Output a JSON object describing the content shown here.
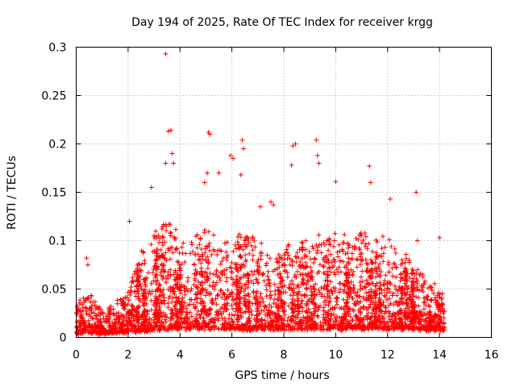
{
  "chart_data": {
    "type": "scatter",
    "title": "Day 194 of 2025, Rate Of TEC Index for receiver krgg",
    "xlabel": "GPS time / hours",
    "ylabel": "ROTI / TECUs",
    "xlim": [
      0,
      16
    ],
    "ylim": [
      0,
      0.3
    ],
    "x_ticks": [
      0,
      2,
      4,
      6,
      8,
      10,
      12,
      14,
      16
    ],
    "y_ticks": [
      0,
      0.05,
      0.1,
      0.15,
      0.2,
      0.25,
      0.3
    ],
    "x_tick_labels": [
      "0",
      "2",
      "4",
      "6",
      "8",
      "10",
      "12",
      "14",
      "16"
    ],
    "y_tick_labels": [
      "0",
      "0.05",
      "0.1",
      "0.15",
      "0.2",
      "0.25",
      "0.3"
    ],
    "grid": true,
    "marker": "+",
    "color": "#ff0000",
    "data_extent_hours": [
      0,
      14.2
    ],
    "envelope": [
      {
        "x": 0.0,
        "base": 0.005,
        "peak": 0.035
      },
      {
        "x": 0.5,
        "base": 0.005,
        "peak": 0.045
      },
      {
        "x": 1.0,
        "base": 0.005,
        "peak": 0.03
      },
      {
        "x": 1.5,
        "base": 0.005,
        "peak": 0.035
      },
      {
        "x": 2.0,
        "base": 0.006,
        "peak": 0.05
      },
      {
        "x": 2.5,
        "base": 0.007,
        "peak": 0.09
      },
      {
        "x": 3.0,
        "base": 0.008,
        "peak": 0.11
      },
      {
        "x": 3.5,
        "base": 0.009,
        "peak": 0.12
      },
      {
        "x": 4.0,
        "base": 0.009,
        "peak": 0.11
      },
      {
        "x": 4.5,
        "base": 0.009,
        "peak": 0.1
      },
      {
        "x": 5.0,
        "base": 0.009,
        "peak": 0.12
      },
      {
        "x": 5.5,
        "base": 0.009,
        "peak": 0.1
      },
      {
        "x": 6.0,
        "base": 0.009,
        "peak": 0.1
      },
      {
        "x": 6.5,
        "base": 0.009,
        "peak": 0.11
      },
      {
        "x": 7.0,
        "base": 0.009,
        "peak": 0.1
      },
      {
        "x": 7.5,
        "base": 0.009,
        "peak": 0.09
      },
      {
        "x": 8.0,
        "base": 0.009,
        "peak": 0.09
      },
      {
        "x": 8.5,
        "base": 0.009,
        "peak": 0.11
      },
      {
        "x": 9.0,
        "base": 0.009,
        "peak": 0.1
      },
      {
        "x": 9.5,
        "base": 0.009,
        "peak": 0.11
      },
      {
        "x": 10.0,
        "base": 0.009,
        "peak": 0.1
      },
      {
        "x": 10.5,
        "base": 0.009,
        "peak": 0.1
      },
      {
        "x": 11.0,
        "base": 0.009,
        "peak": 0.11
      },
      {
        "x": 11.5,
        "base": 0.009,
        "peak": 0.1
      },
      {
        "x": 12.0,
        "base": 0.009,
        "peak": 0.11
      },
      {
        "x": 12.5,
        "base": 0.009,
        "peak": 0.08
      },
      {
        "x": 13.0,
        "base": 0.009,
        "peak": 0.08
      },
      {
        "x": 13.5,
        "base": 0.008,
        "peak": 0.06
      },
      {
        "x": 14.0,
        "base": 0.008,
        "peak": 0.05
      },
      {
        "x": 14.2,
        "base": 0.008,
        "peak": 0.045
      }
    ],
    "notable_points": [
      {
        "x": 3.45,
        "y": 0.293
      },
      {
        "x": 3.55,
        "y": 0.213
      },
      {
        "x": 3.65,
        "y": 0.214
      },
      {
        "x": 3.7,
        "y": 0.19
      },
      {
        "x": 3.75,
        "y": 0.18
      },
      {
        "x": 3.45,
        "y": 0.18
      },
      {
        "x": 2.9,
        "y": 0.155
      },
      {
        "x": 5.1,
        "y": 0.212
      },
      {
        "x": 5.15,
        "y": 0.21
      },
      {
        "x": 5.05,
        "y": 0.17
      },
      {
        "x": 4.95,
        "y": 0.16
      },
      {
        "x": 5.5,
        "y": 0.17
      },
      {
        "x": 5.95,
        "y": 0.188
      },
      {
        "x": 6.05,
        "y": 0.185
      },
      {
        "x": 6.4,
        "y": 0.204
      },
      {
        "x": 6.45,
        "y": 0.195
      },
      {
        "x": 6.35,
        "y": 0.168
      },
      {
        "x": 8.35,
        "y": 0.198
      },
      {
        "x": 8.45,
        "y": 0.2
      },
      {
        "x": 8.3,
        "y": 0.178
      },
      {
        "x": 9.25,
        "y": 0.204
      },
      {
        "x": 9.3,
        "y": 0.188
      },
      {
        "x": 9.35,
        "y": 0.18
      },
      {
        "x": 10.0,
        "y": 0.161
      },
      {
        "x": 11.3,
        "y": 0.177
      },
      {
        "x": 11.35,
        "y": 0.16
      },
      {
        "x": 12.1,
        "y": 0.143
      },
      {
        "x": 13.1,
        "y": 0.15
      },
      {
        "x": 13.15,
        "y": 0.1
      },
      {
        "x": 14.0,
        "y": 0.103
      },
      {
        "x": 0.4,
        "y": 0.082
      },
      {
        "x": 0.45,
        "y": 0.075
      },
      {
        "x": 2.05,
        "y": 0.12
      },
      {
        "x": 7.6,
        "y": 0.137
      },
      {
        "x": 7.1,
        "y": 0.135
      },
      {
        "x": 7.5,
        "y": 0.14
      }
    ]
  }
}
